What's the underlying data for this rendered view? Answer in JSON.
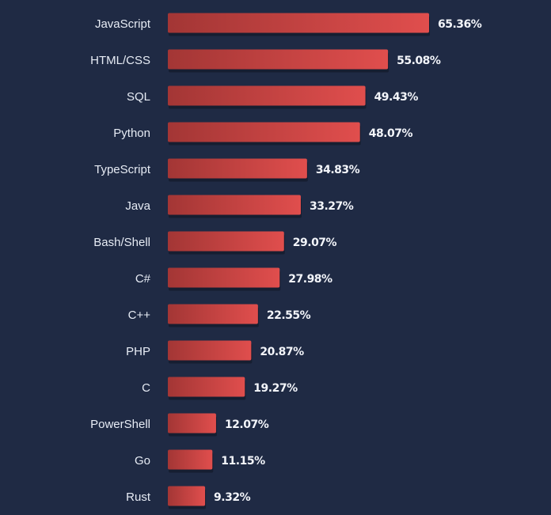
{
  "chart_data": {
    "type": "bar",
    "orientation": "horizontal",
    "categories": [
      "JavaScript",
      "HTML/CSS",
      "SQL",
      "Python",
      "TypeScript",
      "Java",
      "Bash/Shell",
      "C#",
      "C++",
      "PHP",
      "C",
      "PowerShell",
      "Go",
      "Rust"
    ],
    "values": [
      65.36,
      55.08,
      49.43,
      48.07,
      34.83,
      33.27,
      29.07,
      27.98,
      22.55,
      20.87,
      19.27,
      12.07,
      11.15,
      9.32
    ],
    "value_labels": [
      "65.36%",
      "55.08%",
      "49.43%",
      "48.07%",
      "34.83%",
      "33.27%",
      "29.07%",
      "27.98%",
      "22.55%",
      "20.87%",
      "19.27%",
      "12.07%",
      "11.15%",
      "9.32%"
    ],
    "title": "",
    "xlabel": "",
    "ylabel": "",
    "grid": false,
    "legend": "none"
  },
  "colors": {
    "background": "#1f2a44",
    "bar_dark": "#a33635",
    "bar_light": "#e04e4d",
    "bar_shadow": "#141b2d",
    "category_text": "#e7ecf5",
    "value_text": "#f3f5fa"
  }
}
